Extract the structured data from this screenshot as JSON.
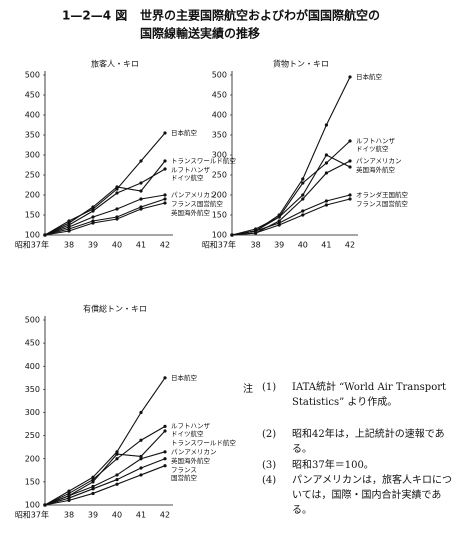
{
  "figure_number": "1—2—4 図",
  "title_lines": [
    "世界の主要国際航空およびわが国国際航空の",
    "国際線輸送実績の推移"
  ],
  "chart_data": [
    {
      "type": "line",
      "title": "旅客人・キロ",
      "categories": [
        "昭和37年",
        "38",
        "39",
        "40",
        "41",
        "42"
      ],
      "ylim": [
        100,
        500
      ],
      "yticks": [
        100,
        150,
        200,
        250,
        300,
        350,
        400,
        450,
        500
      ],
      "series": [
        {
          "name": "日本航空",
          "color": "#111111",
          "values": [
            100,
            135,
            165,
            215,
            285,
            355
          ]
        },
        {
          "name": "トランスワールド航空",
          "color": "#111111",
          "values": [
            100,
            130,
            170,
            220,
            210,
            285
          ]
        },
        {
          "name": "ルフトハンザ\nドイツ航空",
          "color": "#111111",
          "values": [
            100,
            125,
            160,
            205,
            230,
            265
          ]
        },
        {
          "name": "パンアメリカン",
          "color": "#111111",
          "values": [
            100,
            120,
            145,
            165,
            190,
            200
          ]
        },
        {
          "name": "フランス国営航空",
          "color": "#111111",
          "values": [
            100,
            115,
            135,
            145,
            170,
            190
          ]
        },
        {
          "name": "英国海外航空",
          "color": "#111111",
          "values": [
            100,
            110,
            130,
            140,
            165,
            180
          ]
        }
      ]
    },
    {
      "type": "line",
      "title": "貨物トン・キロ",
      "categories": [
        "昭和37年",
        "38",
        "39",
        "40",
        "41",
        "42"
      ],
      "ylim": [
        100,
        500
      ],
      "yticks": [
        100,
        150,
        200,
        250,
        300,
        350,
        400,
        450,
        500
      ],
      "series": [
        {
          "name": "日本航空",
          "color": "#111111",
          "values": [
            100,
            110,
            150,
            240,
            375,
            495
          ]
        },
        {
          "name": "ルフトハンザ\nドイツ航空",
          "color": "#111111",
          "values": [
            100,
            115,
            145,
            230,
            280,
            335
          ]
        },
        {
          "name": "英国海外航空",
          "color": "#111111",
          "values": [
            100,
            110,
            145,
            200,
            300,
            270
          ]
        },
        {
          "name": "パンアメリカン",
          "color": "#111111",
          "values": [
            100,
            105,
            135,
            190,
            255,
            285
          ]
        },
        {
          "name": "オランダ王国航空",
          "color": "#111111",
          "values": [
            100,
            110,
            130,
            160,
            185,
            200
          ]
        },
        {
          "name": "フランス国営航空",
          "color": "#111111",
          "values": [
            100,
            105,
            125,
            150,
            175,
            190
          ]
        }
      ]
    },
    {
      "type": "line",
      "title": "有償総トン・キロ",
      "categories": [
        "昭和37年",
        "38",
        "39",
        "40",
        "41",
        "42"
      ],
      "ylim": [
        100,
        500
      ],
      "yticks": [
        100,
        150,
        200,
        250,
        300,
        350,
        400,
        450,
        500
      ],
      "series": [
        {
          "name": "日本航空",
          "color": "#111111",
          "values": [
            100,
            130,
            160,
            215,
            300,
            375
          ]
        },
        {
          "name": "ルフトハンザ\nドイツ航空",
          "color": "#111111",
          "values": [
            100,
            125,
            155,
            200,
            240,
            270
          ]
        },
        {
          "name": "トランスワールド航空",
          "color": "#111111",
          "values": [
            100,
            120,
            150,
            210,
            205,
            260
          ]
        },
        {
          "name": "パンアメリカン",
          "color": "#111111",
          "values": [
            100,
            120,
            140,
            165,
            200,
            215
          ]
        },
        {
          "name": "英国海外航空",
          "color": "#111111",
          "values": [
            100,
            115,
            135,
            155,
            180,
            200
          ]
        },
        {
          "name": "フランス\n国営航空",
          "color": "#111111",
          "values": [
            100,
            110,
            125,
            145,
            165,
            185
          ]
        }
      ]
    }
  ],
  "notes": {
    "label": "注",
    "items": [
      {
        "number": "(1)",
        "text": "IATA統計 “World Air Transport Statistics” より作成。"
      },
      {
        "number": "(2)",
        "text": "昭和42年は，上記統計の速報である。"
      },
      {
        "number": "(3)",
        "text": "昭和37年＝100。"
      },
      {
        "number": "(4)",
        "text": "パンアメリカンは，旅客人キロについては，国際・国内合計実績である。"
      }
    ]
  }
}
